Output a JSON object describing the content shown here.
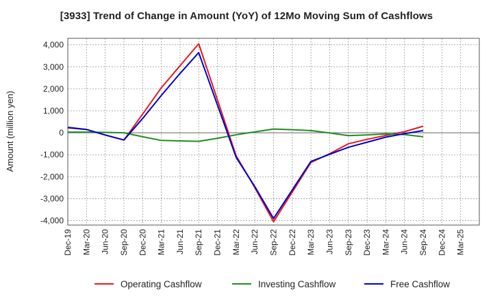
{
  "chart_data": {
    "type": "line",
    "title": "[3933]  Trend of Change in Amount (YoY) of 12Mo Moving Sum of Cashflows",
    "xlabel": "",
    "ylabel": "Amount (million yen)",
    "ylim": [
      -4200,
      4300
    ],
    "yticks": [
      4000,
      3000,
      2000,
      1000,
      0,
      -1000,
      -2000,
      -3000,
      -4000
    ],
    "ytick_labels": [
      "4,000",
      "3,000",
      "2,000",
      "1,000",
      "0",
      "-1,000",
      "-2,000",
      "-3,000",
      "-4,000"
    ],
    "categories": [
      "Dec-19",
      "Mar-20",
      "Jun-20",
      "Sep-20",
      "Dec-20",
      "Mar-21",
      "Jun-21",
      "Sep-21",
      "Dec-21",
      "Mar-22",
      "Jun-22",
      "Sep-22",
      "Dec-22",
      "Mar-23",
      "Jun-23",
      "Sep-23",
      "Dec-23",
      "Mar-24",
      "Jun-24",
      "Sep-24",
      "Dec-24",
      "Mar-25"
    ],
    "grid": true,
    "legend_position": "bottom",
    "series": [
      {
        "name": "Operating Cashflow",
        "color": "#e31a1c",
        "values": [
          220,
          150,
          -100,
          -330,
          850,
          2050,
          3050,
          4050,
          null,
          -1050,
          -2500,
          -4050,
          null,
          -1350,
          -950,
          -500,
          -300,
          -120,
          50,
          300,
          null,
          null
        ]
      },
      {
        "name": "Investing Cashflow",
        "color": "#228b22",
        "values": [
          30,
          30,
          20,
          0,
          -180,
          -350,
          -370,
          -390,
          -250,
          -90,
          40,
          170,
          140,
          100,
          -10,
          -130,
          -100,
          -50,
          -80,
          -180,
          null,
          null
        ]
      },
      {
        "name": "Free Cashflow",
        "color": "#0000cc",
        "values": [
          250,
          150,
          -100,
          -330,
          650,
          1700,
          2700,
          3650,
          null,
          -1120,
          -2450,
          -3900,
          null,
          -1300,
          -980,
          -660,
          -430,
          -200,
          -40,
          100,
          null,
          null
        ]
      }
    ]
  }
}
